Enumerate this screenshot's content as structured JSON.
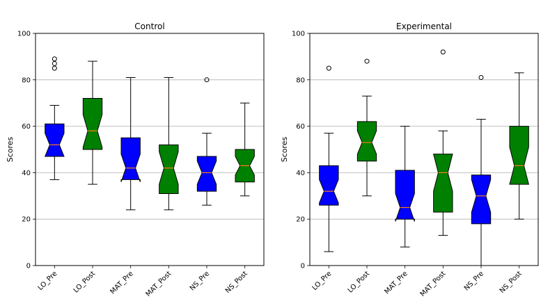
{
  "chart_data": [
    {
      "type": "boxplot",
      "title": "Control",
      "ylabel": "Scores",
      "ylim": [
        0,
        100
      ],
      "yticks": [
        0,
        20,
        40,
        60,
        80,
        100
      ],
      "grid": "y",
      "categories": [
        "LO_Pre",
        "LO_Post",
        "MAT_Pre",
        "MAT_Post",
        "NS_Pre",
        "NS_Post"
      ],
      "colors": [
        "#0000ff",
        "#008000",
        "#0000ff",
        "#008000",
        "#0000ff",
        "#008000"
      ],
      "boxes": [
        {
          "whislo": 37,
          "q1": 47,
          "med": 52,
          "q3": 61,
          "whishi": 69,
          "notchlo": 47,
          "notchhi": 57,
          "fliers": [
            85,
            87,
            89
          ]
        },
        {
          "whislo": 35,
          "q1": 50,
          "med": 58,
          "q3": 72,
          "whishi": 88,
          "notchlo": 51,
          "notchhi": 65,
          "fliers": []
        },
        {
          "whislo": 24,
          "q1": 37,
          "med": 42,
          "q3": 55,
          "whishi": 81,
          "notchlo": 36,
          "notchhi": 48,
          "fliers": []
        },
        {
          "whislo": 24,
          "q1": 31,
          "med": 42,
          "q3": 52,
          "whishi": 81,
          "notchlo": 35,
          "notchhi": 49,
          "fliers": []
        },
        {
          "whislo": 26,
          "q1": 32,
          "med": 40,
          "q3": 47,
          "whishi": 57,
          "notchlo": 35,
          "notchhi": 45,
          "fliers": [
            80
          ]
        },
        {
          "whislo": 30,
          "q1": 36,
          "med": 43,
          "q3": 50,
          "whishi": 70,
          "notchlo": 39,
          "notchhi": 47,
          "fliers": []
        }
      ]
    },
    {
      "type": "boxplot",
      "title": "Experimental",
      "ylabel": "Scores",
      "ylim": [
        0,
        100
      ],
      "yticks": [
        0,
        20,
        40,
        60,
        80,
        100
      ],
      "grid": "y",
      "categories": [
        "LO_Pre",
        "LO_Post",
        "MAT_Pre",
        "MAT_Post",
        "NS_Pre",
        "NS_Post"
      ],
      "colors": [
        "#0000ff",
        "#008000",
        "#0000ff",
        "#008000",
        "#0000ff",
        "#008000"
      ],
      "boxes": [
        {
          "whislo": 6,
          "q1": 26,
          "med": 32,
          "q3": 43,
          "whishi": 57,
          "notchlo": 27,
          "notchhi": 37,
          "fliers": [
            85
          ]
        },
        {
          "whislo": 30,
          "q1": 45,
          "med": 53,
          "q3": 62,
          "whishi": 73,
          "notchlo": 48,
          "notchhi": 58,
          "fliers": [
            88
          ]
        },
        {
          "whislo": 8,
          "q1": 20,
          "med": 25,
          "q3": 41,
          "whishi": 60,
          "notchlo": 19,
          "notchhi": 31,
          "fliers": []
        },
        {
          "whislo": 13,
          "q1": 23,
          "med": 40,
          "q3": 48,
          "whishi": 58,
          "notchlo": 32,
          "notchhi": 48,
          "fliers": [
            92
          ]
        },
        {
          "whislo": 0,
          "q1": 18,
          "med": 30,
          "q3": 39,
          "whishi": 63,
          "notchlo": 23,
          "notchhi": 37,
          "fliers": [
            81
          ]
        },
        {
          "whislo": 20,
          "q1": 35,
          "med": 43,
          "q3": 60,
          "whishi": 83,
          "notchlo": 35,
          "notchhi": 51,
          "fliers": []
        }
      ]
    }
  ]
}
